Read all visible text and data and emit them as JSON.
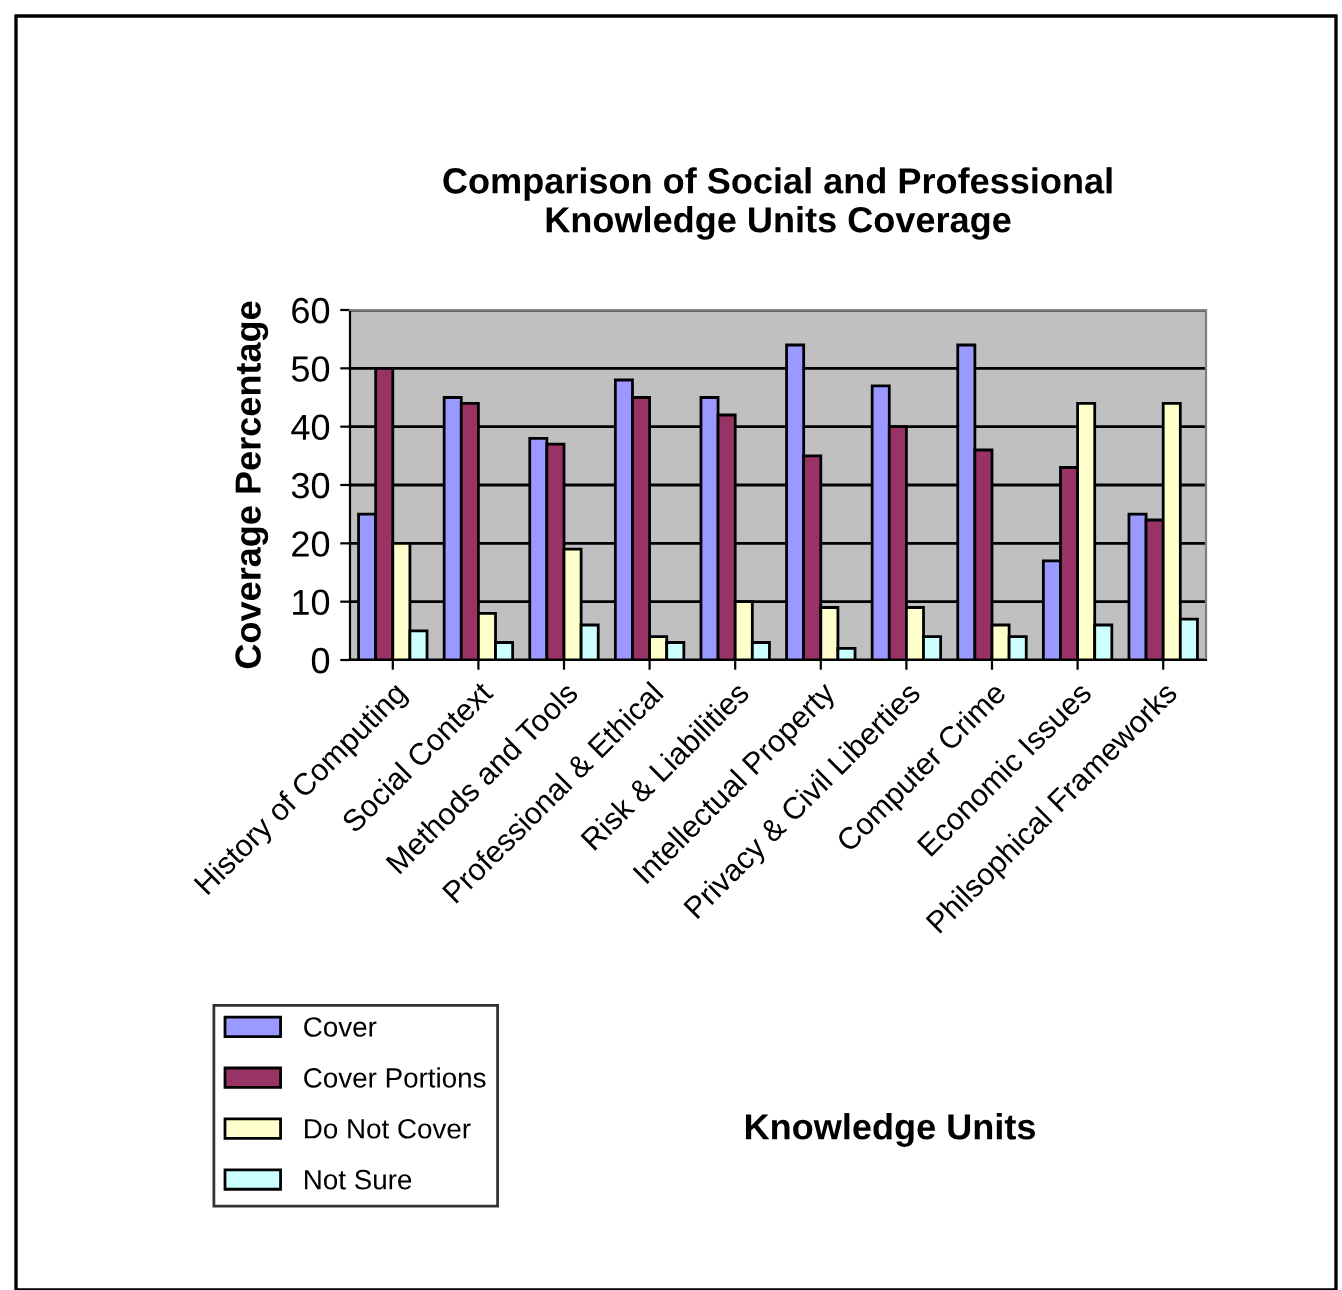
{
  "chart_data": {
    "type": "bar",
    "title": "Comparison of Social and Professional\nKnowledge Units Coverage",
    "annotations": [
      "Knowledge Units"
    ],
    "ylabel": "Coverage Percentage",
    "categories": [
      "History of Computing",
      "Social Context",
      "Methods and Tools",
      "Professional & Ethical",
      "Risk & Liabilities",
      "Intellectual Property",
      "Privacy & Civil Liberties",
      "Computer Crime",
      "Economic Issues",
      "Philsophical Frameworks"
    ],
    "series": [
      {
        "name": "Cover",
        "color": "#9999ff",
        "values": [
          25,
          45,
          38,
          48,
          45,
          54,
          47,
          54,
          17,
          25
        ]
      },
      {
        "name": "Cover Portions",
        "color": "#993366",
        "values": [
          50,
          44,
          37,
          45,
          42,
          35,
          40,
          36,
          33,
          24
        ]
      },
      {
        "name": "Do Not Cover",
        "color": "#ffffcc",
        "values": [
          20,
          8,
          19,
          4,
          10,
          9,
          9,
          6,
          44,
          44
        ]
      },
      {
        "name": "Not Sure",
        "color": "#ccffff",
        "values": [
          5,
          3,
          6,
          3,
          3,
          2,
          4,
          4,
          6,
          7
        ]
      }
    ],
    "ylim": [
      0,
      60
    ],
    "yticks": [
      0,
      10,
      20,
      30,
      40,
      50,
      60
    ],
    "grid": "y",
    "legend": "bottom left"
  }
}
